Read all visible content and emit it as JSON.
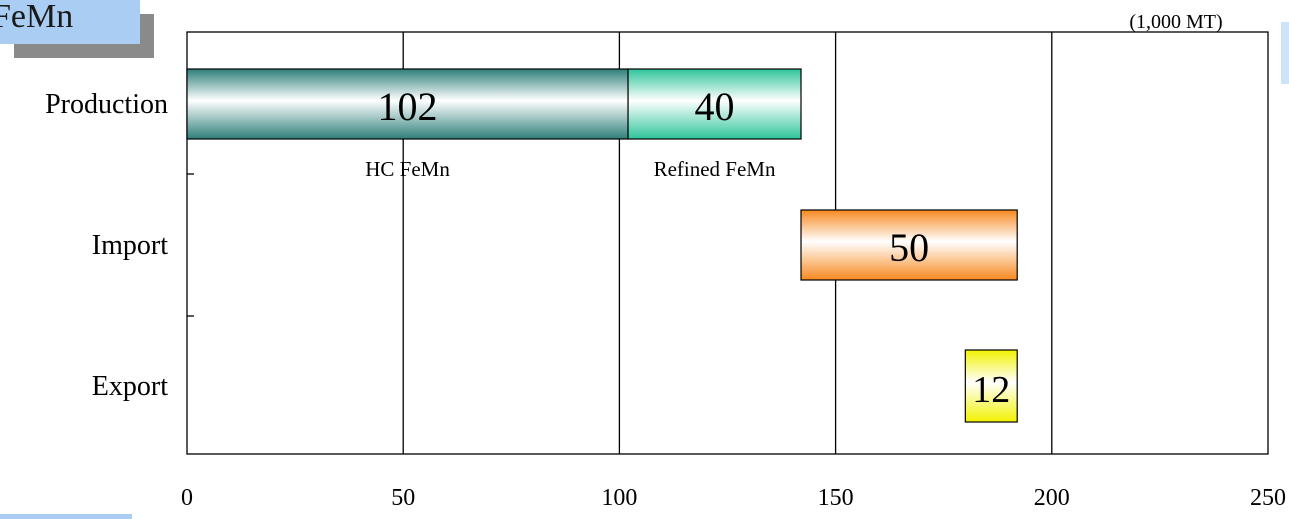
{
  "chart_data": {
    "type": "bar",
    "orientation": "horizontal",
    "stacked": true,
    "title": "FeMn",
    "unit": "(1,000 MT)",
    "categories": [
      "Production",
      "Import",
      "Export"
    ],
    "xlim": [
      0,
      250
    ],
    "x_ticks": [
      "0",
      "50",
      "100",
      "150",
      "200",
      "250"
    ],
    "grid": true,
    "bars": [
      {
        "category": "Production",
        "start": 0,
        "value": 102,
        "label": "102",
        "sublabel": "HC FeMn",
        "color": "#2e7f7a"
      },
      {
        "category": "Production",
        "start": 102,
        "value": 40,
        "label": "40",
        "sublabel": "Refined FeMn",
        "color": "#2ec49a"
      },
      {
        "category": "Import",
        "start": 142,
        "value": 50,
        "label": "50",
        "sublabel": "",
        "color": "#f7891f"
      },
      {
        "category": "Export",
        "start": 180,
        "value": 12,
        "label": "12",
        "sublabel": "",
        "color": "#f2f200"
      }
    ]
  }
}
